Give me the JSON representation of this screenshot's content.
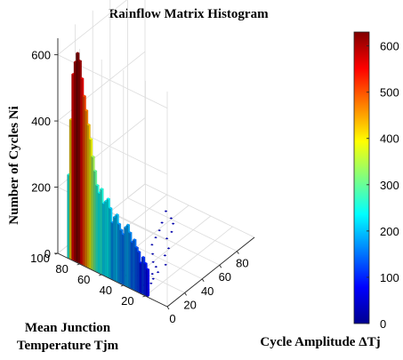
{
  "chart_data": {
    "type": "bar",
    "subtype": "3d-bar-histogram",
    "title": "Rainflow Matrix Histogram",
    "xlabel": "Cycle Amplitude ΔTj",
    "ylabel_lines": [
      "Mean Junction",
      "Temperature Tjm"
    ],
    "zlabel": "Number of Cycles Ni",
    "xlim": [
      0,
      100
    ],
    "ylim": [
      0,
      100
    ],
    "zlim": [
      0,
      650
    ],
    "x_ticks": [
      "0",
      "20",
      "40",
      "60",
      "80"
    ],
    "y_ticks": [
      "20",
      "40",
      "60",
      "80",
      "100"
    ],
    "z_ticks": [
      "0",
      "200",
      "400",
      "600"
    ],
    "grid": true,
    "colormap": "jet",
    "colorbar": {
      "range": [
        0,
        630
      ],
      "ticks": [
        "0",
        "100",
        "200",
        "300",
        "400",
        "500",
        "600"
      ]
    },
    "series": [
      {
        "amplitude": 0.5,
        "mean_temperature": [
          18,
          20,
          22,
          24,
          26,
          28,
          30,
          32,
          34,
          36,
          38,
          40,
          42,
          44,
          46,
          48,
          50,
          52,
          54,
          56,
          58,
          60,
          62,
          64,
          66,
          68,
          70,
          72,
          74,
          76,
          78,
          80,
          82,
          84,
          86,
          88,
          90
        ],
        "cycles": [
          80,
          95,
          110,
          90,
          120,
          130,
          150,
          140,
          165,
          185,
          175,
          150,
          160,
          175,
          200,
          190,
          170,
          210,
          235,
          225,
          215,
          255,
          240,
          260,
          300,
          340,
          390,
          430,
          470,
          510,
          560,
          610,
          630,
          600,
          560,
          420,
          250
        ]
      }
    ],
    "scatter_cells": [
      {
        "x": 3,
        "y": 24,
        "v": 8
      },
      {
        "x": 4,
        "y": 30,
        "v": 6
      },
      {
        "x": 5,
        "y": 40,
        "v": 10
      },
      {
        "x": 6,
        "y": 22,
        "v": 5
      },
      {
        "x": 7,
        "y": 35,
        "v": 7
      },
      {
        "x": 8,
        "y": 28,
        "v": 4
      },
      {
        "x": 9,
        "y": 45,
        "v": 6
      },
      {
        "x": 10,
        "y": 26,
        "v": 5
      },
      {
        "x": 11,
        "y": 33,
        "v": 4
      },
      {
        "x": 12,
        "y": 50,
        "v": 3
      },
      {
        "x": 13,
        "y": 25,
        "v": 4
      },
      {
        "x": 14,
        "y": 38,
        "v": 3
      },
      {
        "x": 15,
        "y": 30,
        "v": 3
      },
      {
        "x": 16,
        "y": 44,
        "v": 2
      },
      {
        "x": 18,
        "y": 27,
        "v": 3
      },
      {
        "x": 20,
        "y": 36,
        "v": 2
      },
      {
        "x": 22,
        "y": 31,
        "v": 2
      },
      {
        "x": 24,
        "y": 42,
        "v": 2
      },
      {
        "x": 26,
        "y": 29,
        "v": 2
      },
      {
        "x": 28,
        "y": 48,
        "v": 1
      },
      {
        "x": 30,
        "y": 34,
        "v": 2
      },
      {
        "x": 33,
        "y": 39,
        "v": 1
      },
      {
        "x": 36,
        "y": 30,
        "v": 1
      },
      {
        "x": 40,
        "y": 45,
        "v": 1
      },
      {
        "x": 44,
        "y": 37,
        "v": 1
      },
      {
        "x": 48,
        "y": 52,
        "v": 1
      },
      {
        "x": 52,
        "y": 40,
        "v": 1
      },
      {
        "x": 56,
        "y": 55,
        "v": 1
      },
      {
        "x": 60,
        "y": 48,
        "v": 1
      },
      {
        "x": 64,
        "y": 58,
        "v": 1
      },
      {
        "x": 68,
        "y": 50,
        "v": 1
      },
      {
        "x": 72,
        "y": 62,
        "v": 1
      },
      {
        "x": 76,
        "y": 55,
        "v": 1
      },
      {
        "x": 80,
        "y": 60,
        "v": 1
      },
      {
        "x": 84,
        "y": 68,
        "v": 1
      }
    ]
  }
}
